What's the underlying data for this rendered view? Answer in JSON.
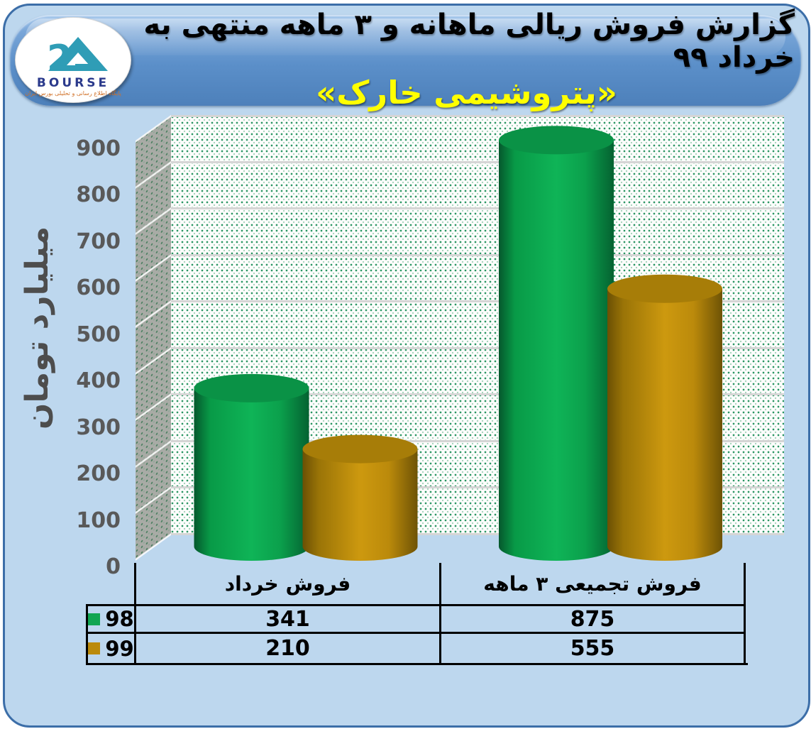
{
  "header": {
    "title_line1": "گزارش فروش ریالی ماهانه و ۳ ماهه منتهی به خرداد ۹۹",
    "title_line2": "«پتروشیمی خارک»",
    "accent_color": "#5b8fc9",
    "title2_color": "#ffff00"
  },
  "logo": {
    "number": "24",
    "name": "BOURSE",
    "tagline": "پایگاه اطلاع رسانی و تحلیلی بورس ایران",
    "triangle_color": "#2f9db6",
    "name_color": "#2b3a8c",
    "tagline_color": "#d06f25"
  },
  "chart_data": {
    "type": "bar",
    "style": "3d-cylinder",
    "categories": [
      "فروش خرداد",
      "فروش تجمیعی ۳ ماهه"
    ],
    "series": [
      {
        "name": "98",
        "color": "#0fb457",
        "top_color": "#0a9246",
        "gradient": [
          "#05582d",
          "#089a47",
          "#0fb457",
          "#0ba04c",
          "#046231"
        ],
        "values": [
          341,
          875
        ]
      },
      {
        "name": "99",
        "color": "#cd990f",
        "top_color": "#a77d08",
        "gradient": [
          "#6b5004",
          "#9a7407",
          "#cd990f",
          "#bb8a0b",
          "#6e5305"
        ],
        "values": [
          210,
          555
        ]
      }
    ],
    "ylabel": "میلیارد تومان",
    "ylim": [
      0,
      900
    ],
    "yticks": [
      900,
      800,
      700,
      600,
      500,
      400,
      300,
      200,
      100,
      0
    ],
    "grid": true,
    "legend_position": "bottom-table",
    "plot_bg": "#fdfdfc",
    "wall_color": "#a9aba6",
    "gridline_color": "#d5d5d5"
  }
}
